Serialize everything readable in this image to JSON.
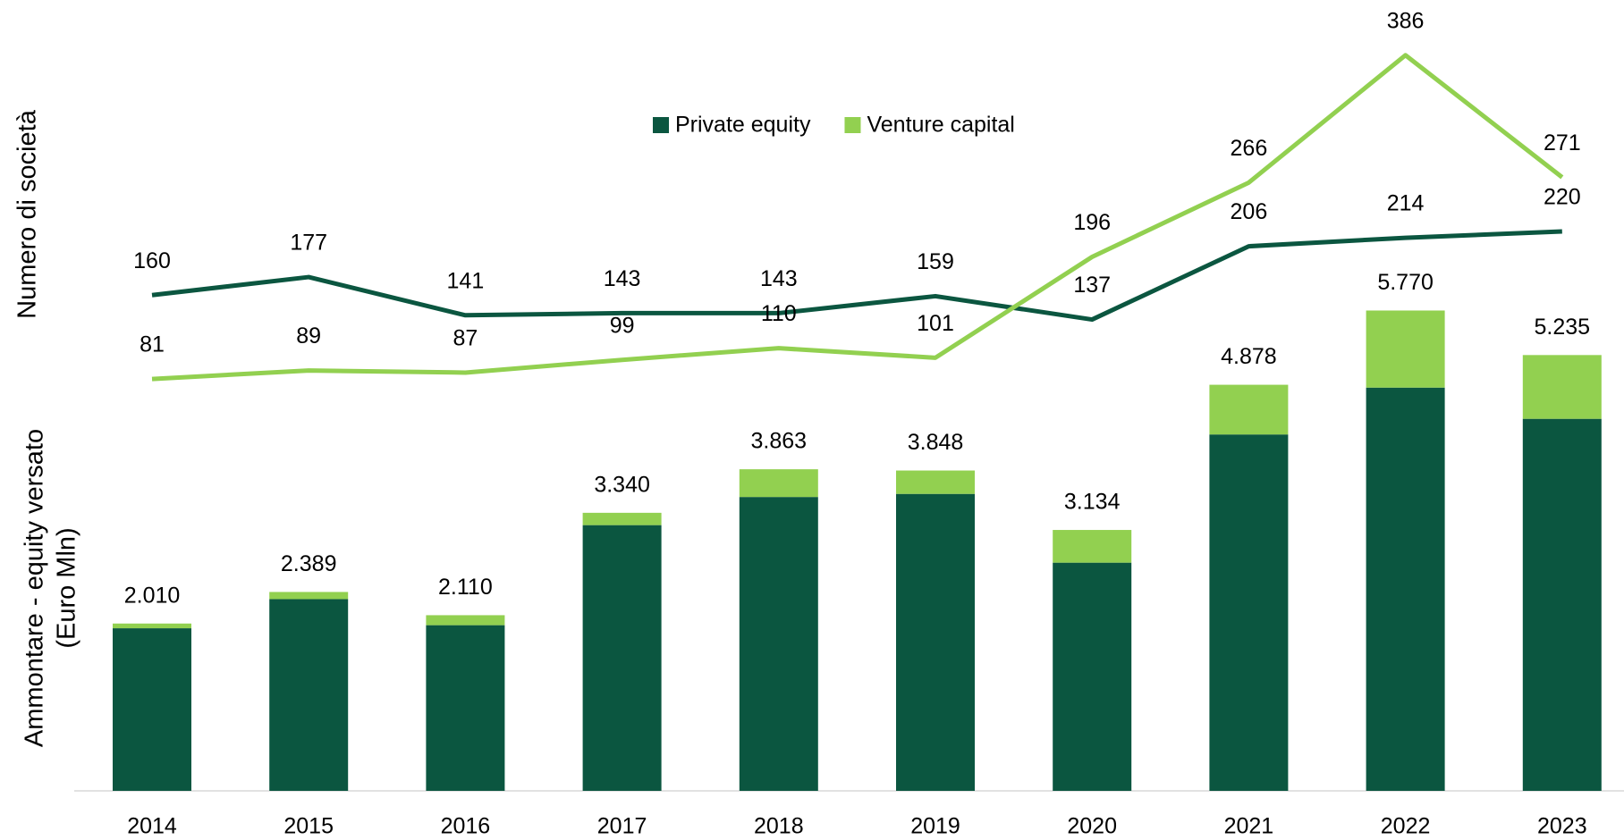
{
  "chart_data": {
    "type": "bar-line",
    "categories": [
      "2014",
      "2015",
      "2016",
      "2017",
      "2018",
      "2019",
      "2020",
      "2021",
      "2022",
      "2023"
    ],
    "y_label": [
      "Ammontare - equity versato",
      "(Euro Mln)"
    ],
    "y2_label": "Numero di società",
    "ylim": [
      0,
      9500
    ],
    "y2lim": [
      -307,
      438
    ],
    "legend": "top",
    "series": [
      {
        "name": "Private equity",
        "color": "#0b5640",
        "type": "bar",
        "values": [
          1953,
          2303,
          1990,
          3192,
          3530,
          3567,
          2741,
          4281,
          4844,
          4469
        ]
      },
      {
        "name": "Venture capital",
        "color": "#92d050",
        "type": "bar",
        "values": [
          57,
          86,
          120,
          148,
          333,
          281,
          393,
          597,
          926,
          766
        ]
      }
    ],
    "totals": [
      2010,
      2389,
      2110,
      3340,
      3863,
      3848,
      3134,
      4878,
      5770,
      5235
    ],
    "total_labels": [
      "2.010",
      "2.389",
      "2.110",
      "3.340",
      "3.863",
      "3.848",
      "3.134",
      "4.878",
      "5.770",
      "5.235"
    ],
    "lines": [
      {
        "name": "Private equity",
        "color": "#0b5640",
        "axis": "y2",
        "values": [
          160,
          177,
          141,
          143,
          143,
          159,
          137,
          206,
          214,
          220
        ]
      },
      {
        "name": "Venture capital",
        "color": "#92d050",
        "axis": "y2",
        "values": [
          81,
          89,
          87,
          99,
          110,
          101,
          196,
          266,
          386,
          271
        ]
      }
    ]
  }
}
